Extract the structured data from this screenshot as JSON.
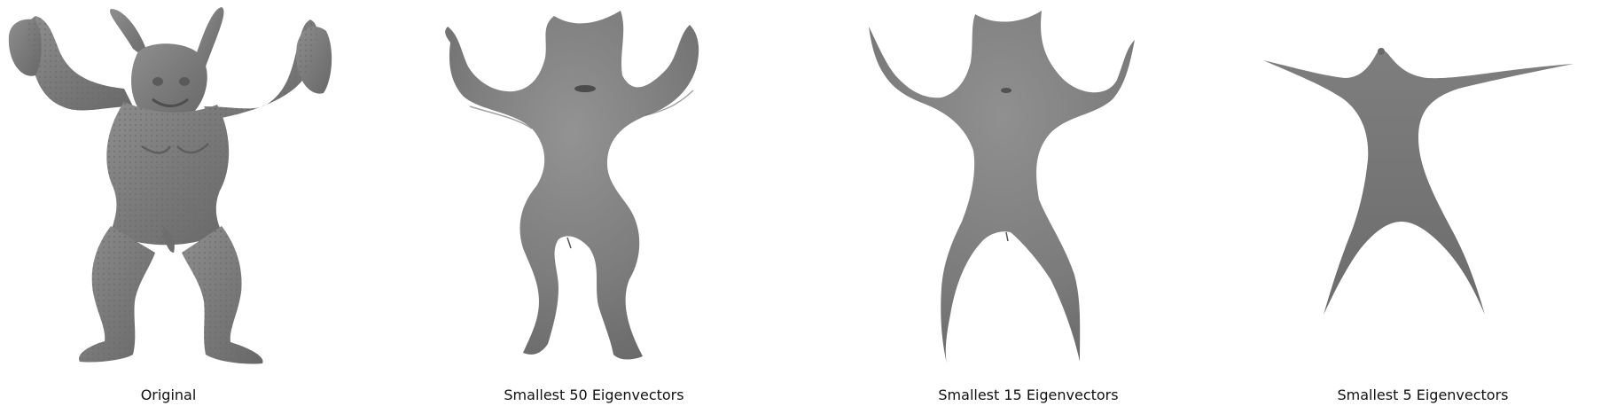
{
  "panels": [
    {
      "id": "original",
      "caption": "Original"
    },
    {
      "id": "smallest-50",
      "caption": "Smallest 50 Eigenvectors"
    },
    {
      "id": "smallest-15",
      "caption": "Smallest 15 Eigenvectors"
    },
    {
      "id": "smallest-5",
      "caption": "Smallest 5 Eigenvectors"
    }
  ],
  "colors": {
    "background": "#ffffff",
    "mesh_light": "#9a9a9a",
    "mesh_mid": "#7c7c7c",
    "mesh_dark": "#555555",
    "caption": "#111111"
  }
}
